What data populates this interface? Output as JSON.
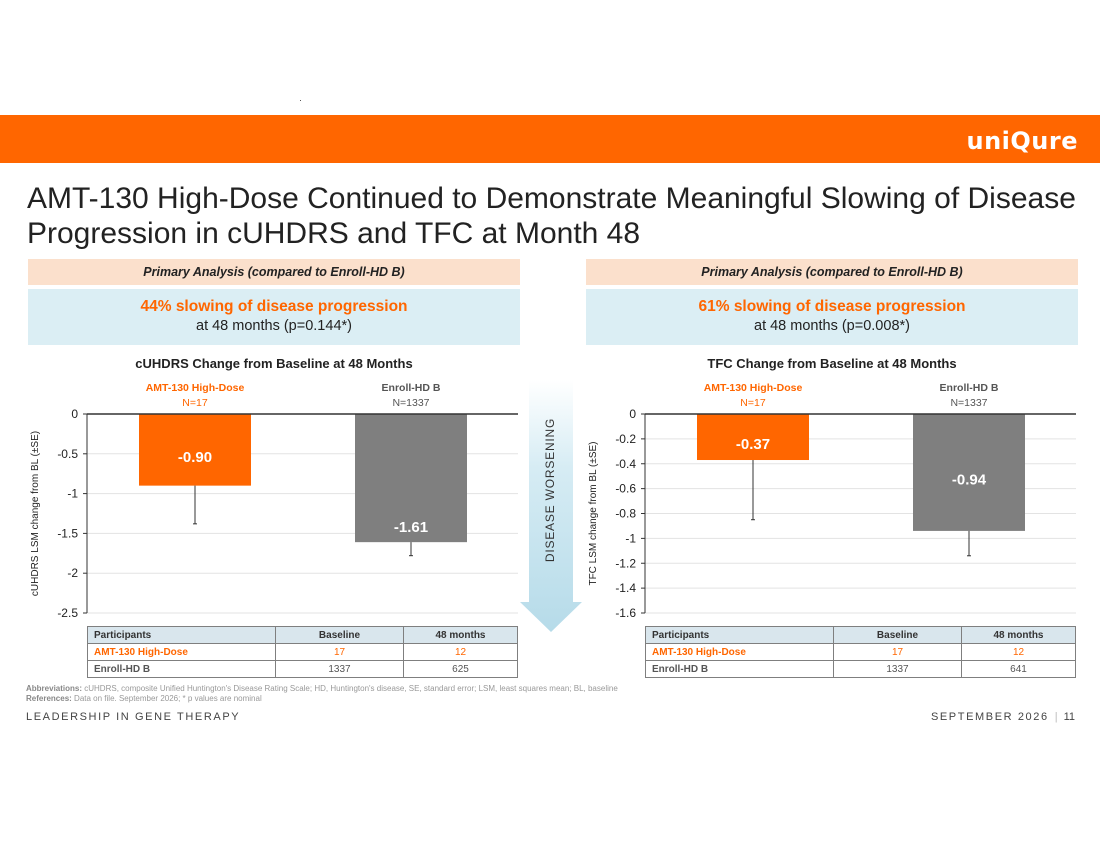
{
  "header": {
    "logo": "uniQure"
  },
  "title": "AMT-130 High-Dose Continued to Demonstrate Meaningful Slowing of Disease Progression in cUHDRS and TFC at Month 48",
  "panels": [
    {
      "analysis_label": "Primary Analysis (compared to Enroll-HD B)",
      "result_main": "44% slowing of disease progression",
      "result_sub": "at 48 months (p=0.144*)",
      "table": {
        "headers": [
          "Participants",
          "Baseline",
          "48 months"
        ],
        "rows": [
          [
            "AMT-130 High-Dose",
            "17",
            "12"
          ],
          [
            "Enroll-HD B",
            "1337",
            "625"
          ]
        ]
      }
    },
    {
      "analysis_label": "Primary Analysis (compared to Enroll-HD B)",
      "result_main": "61% slowing of disease progression",
      "result_sub": "at 48 months (p=0.008*)",
      "table": {
        "headers": [
          "Participants",
          "Baseline",
          "48 months"
        ],
        "rows": [
          [
            "AMT-130 High-Dose",
            "17",
            "12"
          ],
          [
            "Enroll-HD B",
            "1337",
            "641"
          ]
        ]
      }
    }
  ],
  "chart_data": [
    {
      "type": "bar",
      "title": "cUHDRS Change from Baseline at 48 Months",
      "ylabel": "cUHDRS LSM change from BL (±SE)",
      "ylim": [
        -2.5,
        0
      ],
      "yticks": [
        0,
        -0.5,
        -1,
        -1.5,
        -2,
        -2.5
      ],
      "ytick_labels": [
        "0",
        "-0.5",
        "-1",
        "-1.5",
        "-2",
        "-2.5"
      ],
      "grid": true,
      "categories": [
        "AMT-130 High-Dose",
        "Enroll-HD B"
      ],
      "category_n": [
        "N=17",
        "N=1337"
      ],
      "values": [
        -0.9,
        -1.61
      ],
      "value_labels": [
        "-0.90",
        "-1.61"
      ],
      "error_low": [
        -1.38,
        -1.78
      ],
      "colors": [
        "#ff6600",
        "#7f7f7f"
      ]
    },
    {
      "type": "bar",
      "title": "TFC Change from Baseline at 48 Months",
      "ylabel": "TFC LSM change from BL (±SE)",
      "ylim": [
        -1.6,
        0
      ],
      "yticks": [
        0,
        -0.2,
        -0.4,
        -0.6,
        -0.8,
        -1,
        -1.2,
        -1.4,
        -1.6
      ],
      "ytick_labels": [
        "0",
        "-0.2",
        "-0.4",
        "-0.6",
        "-0.8",
        "-1",
        "-1.2",
        "-1.4",
        "-1.6"
      ],
      "grid": true,
      "categories": [
        "AMT-130 High-Dose",
        "Enroll-HD B"
      ],
      "category_n": [
        "N=17",
        "N=1337"
      ],
      "values": [
        -0.37,
        -0.94
      ],
      "value_labels": [
        "-0.37",
        "-0.94"
      ],
      "error_low": [
        -0.85,
        -1.14
      ],
      "colors": [
        "#ff6600",
        "#7f7f7f"
      ]
    }
  ],
  "arrow": {
    "label": "DISEASE WORSENING",
    "color": "#c5e3ee"
  },
  "notes": {
    "abbrev_label": "Abbreviations:",
    "abbrev_text": "cUHDRS, composite Unified Huntington's Disease Rating Scale; HD, Huntington's disease, SE, standard error; LSM, least squares mean; BL, baseline",
    "refs_label": "References:",
    "refs_text": "Data on file. September 2026;  * p values are nominal"
  },
  "footer": {
    "left": "LEADERSHIP IN GENE THERAPY",
    "date": "SEPTEMBER 2026",
    "sep": "|",
    "page": "11"
  }
}
